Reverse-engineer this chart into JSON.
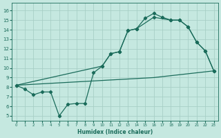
{
  "xlabel": "Humidex (Indice chaleur)",
  "xlim": [
    -0.5,
    23.5
  ],
  "ylim": [
    4.5,
    16.8
  ],
  "yticks": [
    5,
    6,
    7,
    8,
    9,
    10,
    11,
    12,
    13,
    14,
    15,
    16
  ],
  "xticks": [
    0,
    1,
    2,
    3,
    4,
    5,
    6,
    7,
    8,
    9,
    10,
    11,
    12,
    13,
    14,
    15,
    16,
    17,
    18,
    19,
    20,
    21,
    22,
    23
  ],
  "bg_color": "#c5e8e0",
  "line_color": "#1a6b5a",
  "grid_color": "#a8cfc6",
  "curve1_x": [
    0,
    1,
    2,
    3,
    4,
    5,
    6,
    7,
    8,
    9,
    10,
    11,
    12,
    13,
    14,
    15,
    16,
    17,
    18,
    19,
    20,
    21,
    22,
    23
  ],
  "curve1_y": [
    8.2,
    7.8,
    7.2,
    7.5,
    7.5,
    5.0,
    6.2,
    6.3,
    6.3,
    9.5,
    10.2,
    11.5,
    11.7,
    13.9,
    14.1,
    15.2,
    15.7,
    15.3,
    15.0,
    15.0,
    14.3,
    12.7,
    11.8,
    9.7
  ],
  "curve2_x": [
    0,
    10,
    11,
    12,
    13,
    14,
    16,
    18,
    19,
    20,
    21,
    22,
    23
  ],
  "curve2_y": [
    8.2,
    10.2,
    11.5,
    11.7,
    13.9,
    14.1,
    15.3,
    15.0,
    15.0,
    14.3,
    12.7,
    11.8,
    9.7
  ],
  "curve3_x": [
    0,
    1,
    2,
    3,
    4,
    5,
    6,
    7,
    8,
    9,
    10,
    11,
    12,
    13,
    14,
    15,
    16,
    17,
    18,
    19,
    20,
    21,
    22,
    23
  ],
  "curve3_y": [
    8.2,
    8.25,
    8.3,
    8.35,
    8.4,
    8.45,
    8.5,
    8.55,
    8.6,
    8.65,
    8.7,
    8.75,
    8.8,
    8.85,
    8.9,
    8.95,
    9.0,
    9.1,
    9.2,
    9.3,
    9.4,
    9.5,
    9.6,
    9.7
  ]
}
